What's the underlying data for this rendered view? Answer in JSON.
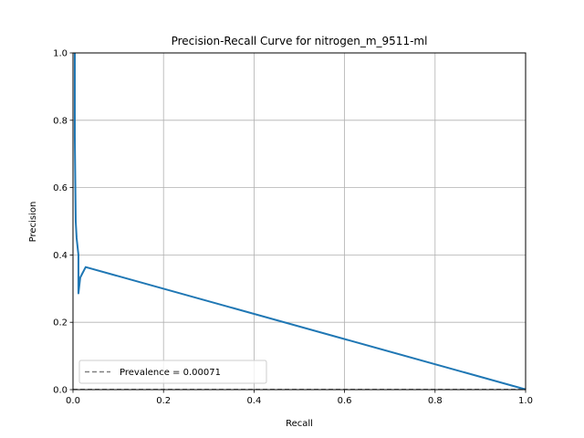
{
  "chart_data": {
    "type": "line",
    "title": "Precision-Recall Curve for nitrogen_m_9511-ml",
    "xlabel": "Recall",
    "ylabel": "Precision",
    "xlim": [
      0.0,
      1.0
    ],
    "ylim": [
      0.0,
      1.0
    ],
    "xticks": [
      "0.0",
      "0.2",
      "0.4",
      "0.6",
      "0.8",
      "1.0"
    ],
    "yticks": [
      "0.0",
      "0.2",
      "0.4",
      "0.6",
      "0.8",
      "1.0"
    ],
    "grid": true,
    "legend_position": "lower-left",
    "series": [
      {
        "color": "#1f77b4",
        "style": "solid",
        "x": [
          0.004,
          0.004,
          0.006,
          0.008,
          0.012,
          0.012,
          0.016,
          0.028,
          1.0
        ],
        "y": [
          1.0,
          0.75,
          0.5,
          0.45,
          0.4,
          0.286,
          0.333,
          0.364,
          0.0007
        ]
      },
      {
        "name": "Prevalence = 0.00071",
        "color": "#808080",
        "style": "dashed",
        "x": [
          0.0,
          1.0
        ],
        "y": [
          0.00071,
          0.00071
        ]
      }
    ]
  }
}
